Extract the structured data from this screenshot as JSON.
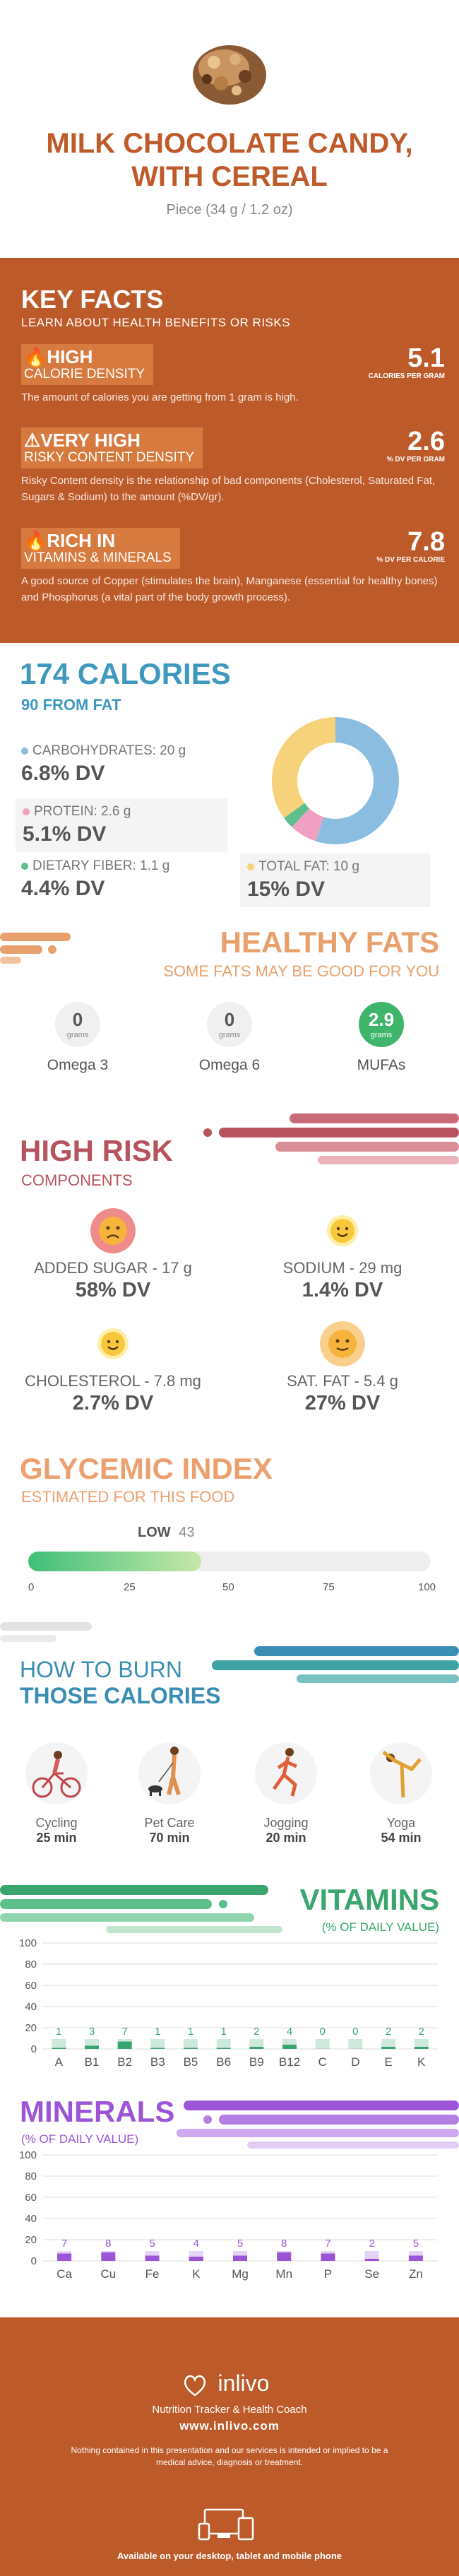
{
  "header": {
    "title_line1": "MILK CHOCOLATE CANDY,",
    "title_line2": "WITH CEREAL",
    "serving": "Piece (34 g / 1.2 oz)"
  },
  "key_facts": {
    "title": "KEY FACTS",
    "subtitle": "LEARN ABOUT HEALTH BENEFITS OR RISKS",
    "facts": [
      {
        "level": "HIGH",
        "name": "CALORIE DENSITY",
        "value": "5.1",
        "unit": "CALORIES PER GRAM",
        "desc": "The amount of calories you are getting from 1 gram is high."
      },
      {
        "level": "VERY HIGH",
        "name": "RISKY CONTENT DENSITY",
        "value": "2.6",
        "unit": "% DV PER GRAM",
        "desc": "Risky Content density is the relationship of bad components (Cholesterol, Saturated Fat, Sugars & Sodium) to the amount (%DV/gr)."
      },
      {
        "level": "RICH  IN",
        "name": "VITAMINS & MINERALS",
        "value": "7.8",
        "unit": "% DV PER CALORIE",
        "desc": "A good source of Copper (stimulates the brain), Manganese (essential for healthy bones) and Phosphorus (a vital part of the body growth process)."
      }
    ]
  },
  "calories": {
    "title": "174 CALORIES",
    "subtitle": "90 FROM FAT",
    "nutrients": [
      {
        "label": "CARBOHYDRATES: 20 g",
        "dv": "6.8% DV",
        "color": "#8bbde0"
      },
      {
        "label": "PROTEIN: 2.6 g",
        "dv": "5.1% DV",
        "color": "#f0a0c0"
      },
      {
        "label": "DIETARY FIBER: 1.1 g",
        "dv": "4.4% DV",
        "color": "#5cbf8c"
      },
      {
        "label": "TOTAL FAT: 10 g",
        "dv": "15% DV",
        "color": "#f6d27a"
      }
    ],
    "donut": [
      {
        "name": "carbohydrates",
        "value": 0.55,
        "color": "#8bbde0"
      },
      {
        "name": "protein",
        "value": 0.07,
        "color": "#f0a0c0"
      },
      {
        "name": "fiber",
        "value": 0.03,
        "color": "#5cbf8c"
      },
      {
        "name": "fat",
        "value": 0.35,
        "color": "#f6d27a"
      }
    ]
  },
  "healthy_fats": {
    "title": "HEALTHY FATS",
    "subtitle": "SOME FATS MAY BE GOOD FOR YOU",
    "unit": "grams",
    "items": [
      {
        "value": "0",
        "name": "Omega 3"
      },
      {
        "value": "0",
        "name": "Omega 6"
      },
      {
        "value": "2.9",
        "name": "MUFAs"
      }
    ]
  },
  "high_risk": {
    "title": "HIGH RISK",
    "subtitle": "COMPONENTS",
    "items": [
      {
        "label": "ADDED SUGAR - 17 g",
        "dv": "58% DV",
        "mood": "sad"
      },
      {
        "label": "SODIUM - 29 mg",
        "dv": "1.4% DV",
        "mood": "happy"
      },
      {
        "label": "CHOLESTEROL - 7.8 mg",
        "dv": "2.7% DV",
        "mood": "happy"
      },
      {
        "label": "SAT. FAT - 5.4 g",
        "dv": "27% DV",
        "mood": "neutral"
      }
    ]
  },
  "glycemic": {
    "title": "GLYCEMIC INDEX",
    "subtitle": "ESTIMATED FOR THIS FOOD",
    "level": "LOW",
    "value": 43,
    "value_label": "43",
    "scale": [
      "0",
      "25",
      "50",
      "75",
      "100"
    ]
  },
  "burn": {
    "title1": "HOW TO BURN",
    "title2": "THOSE CALORIES",
    "activities": [
      {
        "name": "Cycling",
        "minutes": "25 min"
      },
      {
        "name": "Pet Care",
        "minutes": "70 min"
      },
      {
        "name": "Jogging",
        "minutes": "20 min"
      },
      {
        "name": "Yoga",
        "minutes": "54 min"
      }
    ]
  },
  "vitamins": {
    "title": "VITAMINS",
    "subtitle": "(% OF DAILY VALUE)"
  },
  "minerals": {
    "title": "MINERALS",
    "subtitle": "(% OF DAILY VALUE)"
  },
  "chart_data": [
    {
      "type": "bar",
      "categories": [
        "A",
        "B1",
        "B2",
        "B3",
        "B5",
        "B6",
        "B9",
        "B12",
        "C",
        "D",
        "E",
        "K"
      ],
      "values": [
        1,
        3,
        7,
        1,
        1,
        1,
        2,
        4,
        0,
        0,
        2,
        2
      ],
      "ylim": [
        0,
        100
      ],
      "yticks": [
        "0",
        "20",
        "40",
        "60",
        "80",
        "100"
      ],
      "color": "#3aa56f"
    },
    {
      "type": "bar",
      "categories": [
        "Ca",
        "Cu",
        "Fe",
        "K",
        "Mg",
        "Mn",
        "P",
        "Se",
        "Zn"
      ],
      "values": [
        7,
        8,
        5,
        4,
        5,
        8,
        7,
        2,
        5
      ],
      "ylim": [
        0,
        100
      ],
      "yticks": [
        "0",
        "20",
        "40",
        "60",
        "80",
        "100"
      ],
      "color": "#9b55d6"
    }
  ],
  "footer": {
    "brand": "inlivo",
    "tagline": "Nutrition Tracker & Health Coach",
    "url": "www.inlivo.com",
    "disclaimer": "Nothing contained in this presentation and our services is intended or implied to be a medical advice, diagnosis or treatment.",
    "available": "Available on your desktop, tablet and mobile phone"
  }
}
